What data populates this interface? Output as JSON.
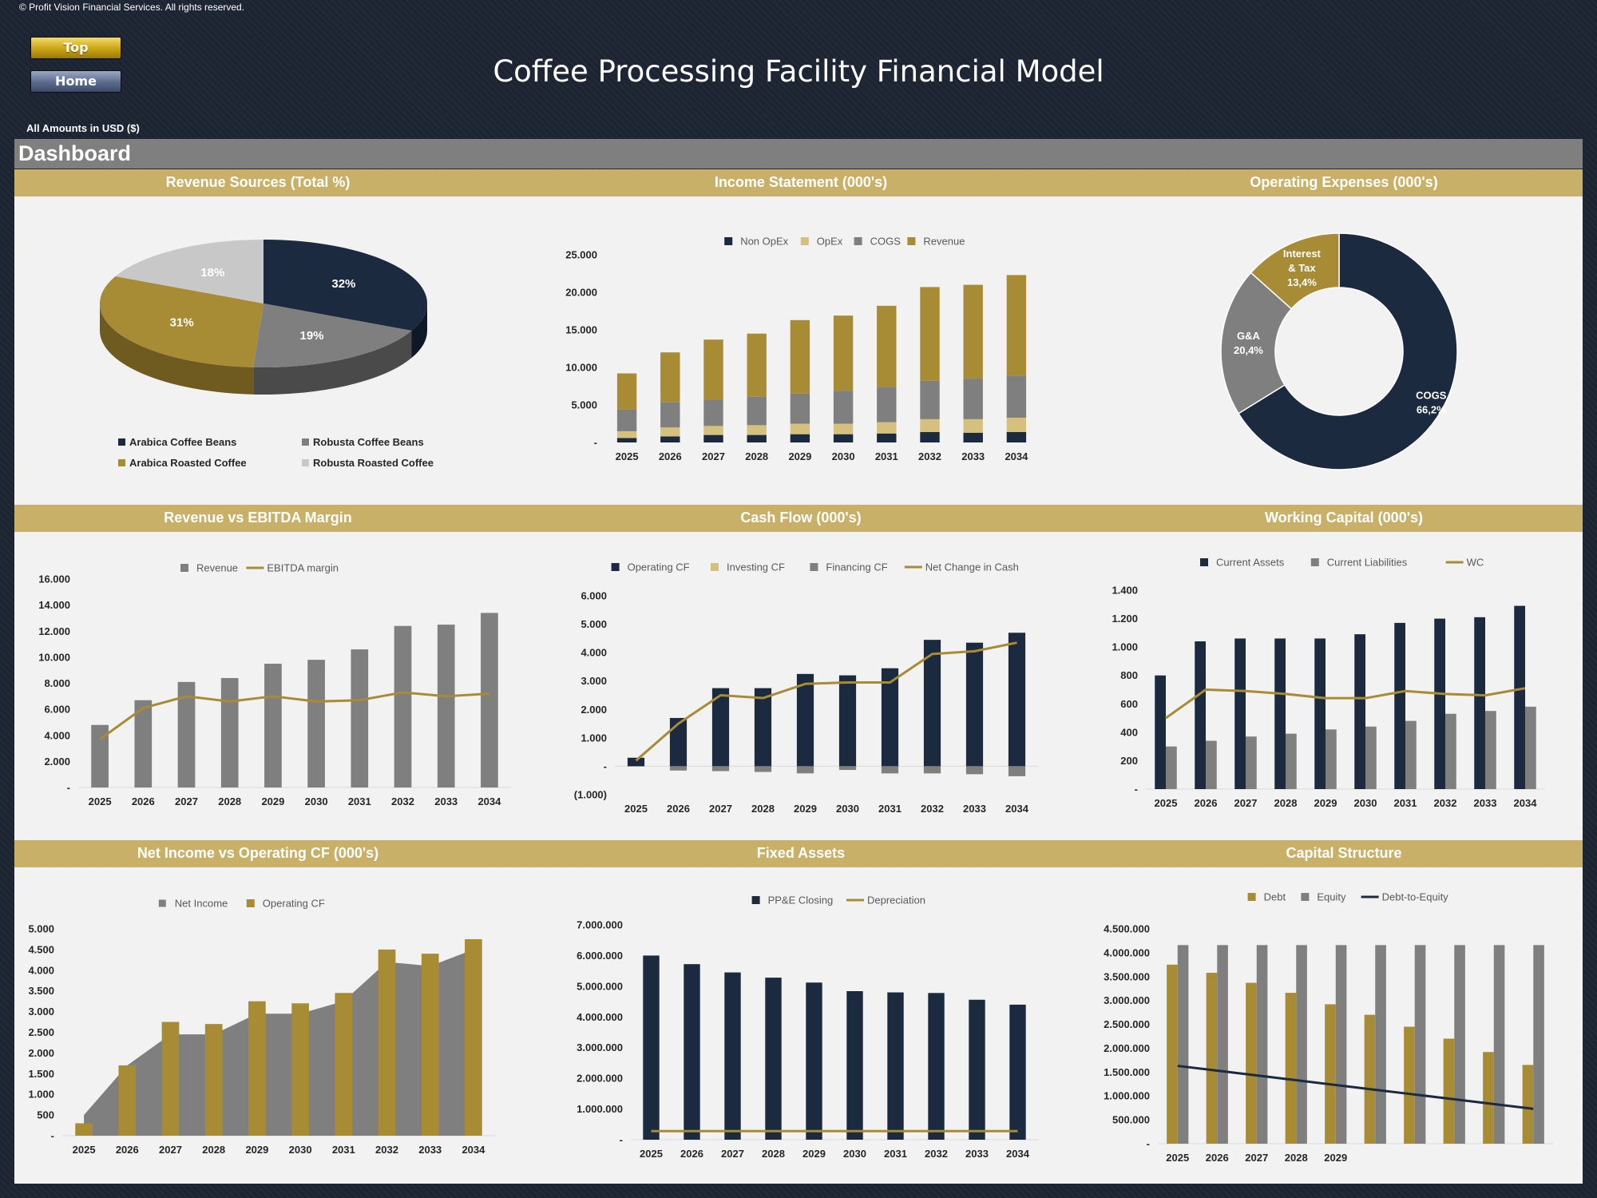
{
  "header": {
    "copyright": "© Profit Vision Financial Services. All rights reserved.",
    "top_button": "Top",
    "home_button": "Home",
    "title": "Coffee Processing Facility Financial Model",
    "amounts_note": "All Amounts in  USD ($)",
    "dashboard_label": "Dashboard"
  },
  "colors": {
    "navy": "#1b2a3f",
    "gold": "#a88b35",
    "gray": "#7f7f7f",
    "lightgray": "#c8c8c8",
    "tan": "#d6c07e"
  },
  "chart_data": [
    {
      "id": "revenue_sources",
      "type": "pie",
      "title": "Revenue Sources (Total %)",
      "categories": [
        "Arabica Coffee Beans",
        "Robusta Coffee Beans",
        "Arabica Roasted Coffee",
        "Robusta Roasted Coffee"
      ],
      "values": [
        32,
        19,
        31,
        18
      ],
      "labels": [
        "32%",
        "19%",
        "31%",
        "18%"
      ],
      "colors": [
        "#1b2a3f",
        "#7f7f7f",
        "#a88b35",
        "#c8c8c8"
      ],
      "legend": "bottom"
    },
    {
      "id": "income_statement",
      "type": "bar",
      "stacked": true,
      "title": "Income Statement (000's)",
      "categories": [
        "2025",
        "2026",
        "2027",
        "2028",
        "2029",
        "2030",
        "2031",
        "2032",
        "2033",
        "2034"
      ],
      "series": [
        {
          "name": "Non OpEx",
          "color": "#1b2a3f",
          "values": [
            600,
            800,
            1000,
            1000,
            1100,
            1100,
            1200,
            1400,
            1300,
            1400
          ]
        },
        {
          "name": "OpEx",
          "color": "#d6c07e",
          "values": [
            900,
            1200,
            1200,
            1300,
            1400,
            1400,
            1500,
            1700,
            1800,
            1900
          ]
        },
        {
          "name": "COGS",
          "color": "#7f7f7f",
          "values": [
            2900,
            3400,
            3500,
            3800,
            4000,
            4400,
            4700,
            5100,
            5400,
            5600
          ]
        },
        {
          "name": "Revenue",
          "color": "#a88b35",
          "values": [
            4800,
            6600,
            8000,
            8400,
            9800,
            10000,
            10800,
            12500,
            12500,
            13400
          ]
        }
      ],
      "yticks": [
        "-",
        "5.000",
        "10.000",
        "15.000",
        "20.000",
        "25.000"
      ],
      "ylim": [
        0,
        25000
      ],
      "legend": "top"
    },
    {
      "id": "operating_expenses",
      "type": "pie",
      "donut": true,
      "title": "Operating Expenses (000's)",
      "categories": [
        "COGS",
        "G&A",
        "Interest & Tax"
      ],
      "values": [
        66.2,
        20.4,
        13.4
      ],
      "labels": [
        "66,2%",
        "20,4%",
        "13,4%"
      ],
      "label_lines": [
        [
          "COGS",
          "66,2%"
        ],
        [
          "G&A",
          "20,4%"
        ],
        [
          "Interest",
          "& Tax",
          "13,4%"
        ]
      ],
      "colors": [
        "#1b2a3f",
        "#7f7f7f",
        "#a88b35"
      ]
    },
    {
      "id": "revenue_vs_ebitda",
      "type": "bar",
      "title": "Revenue vs EBITDA Margin",
      "categories": [
        "2025",
        "2026",
        "2027",
        "2028",
        "2029",
        "2030",
        "2031",
        "2032",
        "2033",
        "2034"
      ],
      "series": [
        {
          "name": "Revenue",
          "type": "bar",
          "color": "#7f7f7f",
          "values": [
            4800,
            6700,
            8100,
            8400,
            9500,
            9800,
            10600,
            12400,
            12500,
            13400
          ]
        },
        {
          "name": "EBITDA margin",
          "type": "line",
          "color": "#a88b35",
          "values": [
            3700,
            6100,
            7000,
            6600,
            7000,
            6600,
            6700,
            7300,
            7000,
            7200
          ]
        }
      ],
      "yticks": [
        "-",
        "2.000",
        "4.000",
        "6.000",
        "8.000",
        "10.000",
        "12.000",
        "14.000",
        "16.000"
      ],
      "ylim": [
        0,
        16000
      ],
      "legend": "top"
    },
    {
      "id": "cash_flow",
      "type": "bar",
      "title": "Cash Flow (000's)",
      "categories": [
        "2025",
        "2026",
        "2027",
        "2028",
        "2029",
        "2030",
        "2031",
        "2032",
        "2033",
        "2034"
      ],
      "series": [
        {
          "name": "Operating CF",
          "type": "bar",
          "color": "#1b2a3f",
          "values": [
            300,
            1700,
            2750,
            2750,
            3250,
            3200,
            3450,
            4450,
            4350,
            4700
          ]
        },
        {
          "name": "Investing CF",
          "type": "bar",
          "color": "#d6c07e",
          "values": [
            0,
            -20,
            -50,
            -150,
            -150,
            -100,
            -250,
            -250,
            -20,
            -20
          ]
        },
        {
          "name": "Financing CF",
          "type": "bar",
          "color": "#7f7f7f",
          "values": [
            0,
            -150,
            -170,
            -200,
            -250,
            -130,
            -250,
            -250,
            -280,
            -350
          ]
        },
        {
          "name": "Net Change in Cash",
          "type": "line",
          "color": "#a88b35",
          "values": [
            200,
            1500,
            2500,
            2400,
            2900,
            2950,
            2950,
            3950,
            4050,
            4350
          ]
        }
      ],
      "yticks": [
        "(1.000)",
        "-",
        "1.000",
        "2.000",
        "3.000",
        "4.000",
        "5.000",
        "6.000"
      ],
      "ylim": [
        -1000,
        6000
      ],
      "legend": "top"
    },
    {
      "id": "working_capital",
      "type": "bar",
      "title": "Working Capital (000's)",
      "categories": [
        "2025",
        "2026",
        "2027",
        "2028",
        "2029",
        "2030",
        "2031",
        "2032",
        "2033",
        "2034"
      ],
      "series": [
        {
          "name": "Current Assets",
          "type": "bar",
          "color": "#1b2a3f",
          "values": [
            800,
            1040,
            1060,
            1060,
            1060,
            1090,
            1170,
            1200,
            1210,
            1290
          ]
        },
        {
          "name": "Current Liabilities",
          "type": "bar",
          "color": "#7f7f7f",
          "values": [
            300,
            340,
            370,
            390,
            420,
            440,
            480,
            530,
            550,
            580
          ]
        },
        {
          "name": "WC",
          "type": "line",
          "color": "#a88b35",
          "values": [
            500,
            700,
            690,
            670,
            640,
            640,
            690,
            670,
            660,
            710
          ]
        }
      ],
      "yticks": [
        "-",
        "200",
        "400",
        "600",
        "800",
        "1.000",
        "1.200",
        "1.400"
      ],
      "ylim": [
        0,
        1400
      ],
      "legend": "top"
    },
    {
      "id": "net_income_vs_ocf",
      "type": "bar",
      "title": "Net Income vs Operating CF (000's)",
      "categories": [
        "2025",
        "2026",
        "2027",
        "2028",
        "2029",
        "2030",
        "2031",
        "2032",
        "2033",
        "2034"
      ],
      "series": [
        {
          "name": "Net Income",
          "type": "area",
          "color": "#7f7f7f",
          "values": [
            500,
            1700,
            2450,
            2450,
            2950,
            2950,
            3250,
            4200,
            4100,
            4500
          ]
        },
        {
          "name": "Operating CF",
          "type": "bar",
          "color": "#a88b35",
          "values": [
            300,
            1700,
            2750,
            2700,
            3250,
            3200,
            3450,
            4500,
            4400,
            4750
          ]
        }
      ],
      "yticks": [
        "-",
        "500",
        "1.000",
        "1.500",
        "2.000",
        "2.500",
        "3.000",
        "3.500",
        "4.000",
        "4.500",
        "5.000"
      ],
      "ylim": [
        0,
        5000
      ],
      "legend": "top"
    },
    {
      "id": "fixed_assets",
      "type": "bar",
      "title": "Fixed Assets",
      "categories": [
        "2025",
        "2026",
        "2027",
        "2028",
        "2029",
        "2030",
        "2031",
        "2032",
        "2033",
        "2034"
      ],
      "series": [
        {
          "name": "PP&E Closing",
          "type": "bar",
          "color": "#1b2a3f",
          "values": [
            6000000,
            5720000,
            5450000,
            5280000,
            5120000,
            4840000,
            4800000,
            4780000,
            4560000,
            4400000
          ]
        },
        {
          "name": "Depreciation",
          "type": "line",
          "color": "#a88b35",
          "values": [
            280000,
            280000,
            280000,
            280000,
            280000,
            280000,
            280000,
            280000,
            280000,
            280000
          ]
        }
      ],
      "yticks": [
        "-",
        "1.000.000",
        "2.000.000",
        "3.000.000",
        "4.000.000",
        "5.000.000",
        "6.000.000",
        "7.000.000"
      ],
      "ylim": [
        0,
        7000000
      ],
      "legend": "top"
    },
    {
      "id": "capital_structure",
      "type": "bar",
      "title": "Capital Structure",
      "categories": [
        "2025",
        "2026",
        "2027",
        "2028",
        "2029",
        "",
        "",
        "",
        "",
        ""
      ],
      "series": [
        {
          "name": "Debt",
          "type": "bar",
          "color": "#a88b35",
          "values": [
            3750000,
            3580000,
            3370000,
            3160000,
            2920000,
            2700000,
            2450000,
            2200000,
            1920000,
            1650000
          ]
        },
        {
          "name": "Equity",
          "type": "bar",
          "color": "#7f7f7f",
          "values": [
            4160000,
            4160000,
            4160000,
            4160000,
            4160000,
            4160000,
            4160000,
            4160000,
            4160000,
            4160000
          ]
        },
        {
          "name": "Debt-to-Equity",
          "type": "line",
          "color": "#1b2a3f",
          "values": [
            1630000,
            1530000,
            1430000,
            1330000,
            1230000,
            1130000,
            1030000,
            930000,
            830000,
            730000
          ]
        }
      ],
      "yticks": [
        "-",
        "500.000",
        "1.000.000",
        "1.500.000",
        "2.000.000",
        "2.500.000",
        "3.000.000",
        "3.500.000",
        "4.000.000",
        "4.500.000"
      ],
      "ylim": [
        0,
        4500000
      ],
      "legend": "top"
    }
  ]
}
